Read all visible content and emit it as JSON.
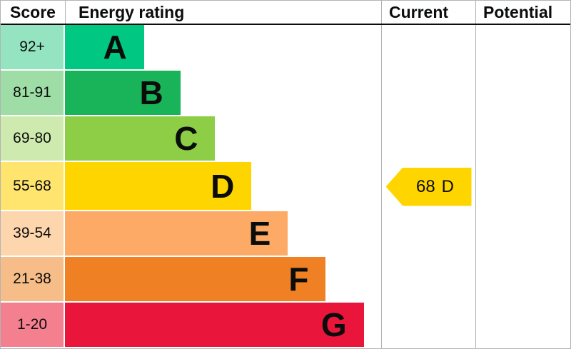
{
  "chart_data": {
    "type": "bar",
    "title": "Energy rating",
    "columns": {
      "score": "Score",
      "rating": "Energy rating",
      "current": "Current",
      "potential": "Potential"
    },
    "bands": [
      {
        "range": "92+",
        "letter": "A",
        "min": 92,
        "max": 100,
        "bar_color": "#00c781",
        "tint_color": "#94e3c1",
        "width_pct": 25
      },
      {
        "range": "81-91",
        "letter": "B",
        "min": 81,
        "max": 91,
        "bar_color": "#19b459",
        "tint_color": "#9edda5",
        "width_pct": 36.5
      },
      {
        "range": "69-80",
        "letter": "C",
        "min": 69,
        "max": 80,
        "bar_color": "#8dce46",
        "tint_color": "#cfeaae",
        "width_pct": 47.5
      },
      {
        "range": "55-68",
        "letter": "D",
        "min": 55,
        "max": 68,
        "bar_color": "#ffd500",
        "tint_color": "#ffe46e",
        "width_pct": 59
      },
      {
        "range": "39-54",
        "letter": "E",
        "min": 39,
        "max": 54,
        "bar_color": "#fcaa65",
        "tint_color": "#fdd6ad",
        "width_pct": 70.5
      },
      {
        "range": "21-38",
        "letter": "F",
        "min": 21,
        "max": 38,
        "bar_color": "#ef8023",
        "tint_color": "#f7bd88",
        "width_pct": 82.5
      },
      {
        "range": "1-20",
        "letter": "G",
        "min": 1,
        "max": 20,
        "bar_color": "#e9153b",
        "tint_color": "#f4808f",
        "width_pct": 94.5
      }
    ],
    "current": {
      "value": 68,
      "letter": "D",
      "color": "#ffd500",
      "band_row": 3
    },
    "potential": null
  }
}
